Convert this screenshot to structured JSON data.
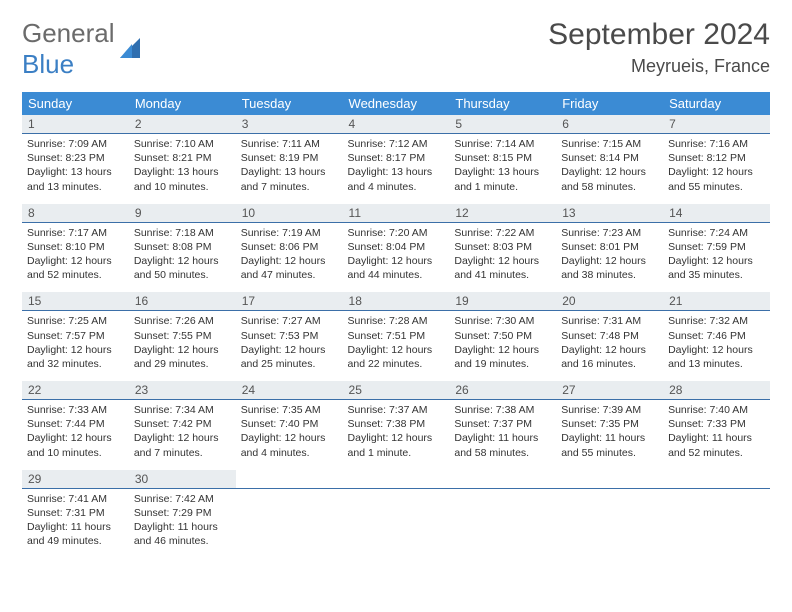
{
  "logo": {
    "line1": "General",
    "line2": "Blue"
  },
  "title": "September 2024",
  "location": "Meyrueis, France",
  "colors": {
    "header_bg": "#3b8bd4",
    "header_text": "#ffffff",
    "daynum_bg": "#e9edf0",
    "row_border": "#3b6fa8",
    "logo_gray": "#6b6b6b",
    "logo_blue": "#3b7fc4",
    "text": "#333333",
    "page_bg": "#ffffff"
  },
  "day_headers": [
    "Sunday",
    "Monday",
    "Tuesday",
    "Wednesday",
    "Thursday",
    "Friday",
    "Saturday"
  ],
  "weeks": [
    [
      {
        "n": "1",
        "sr": "Sunrise: 7:09 AM",
        "ss": "Sunset: 8:23 PM",
        "dl": "Daylight: 13 hours and 13 minutes."
      },
      {
        "n": "2",
        "sr": "Sunrise: 7:10 AM",
        "ss": "Sunset: 8:21 PM",
        "dl": "Daylight: 13 hours and 10 minutes."
      },
      {
        "n": "3",
        "sr": "Sunrise: 7:11 AM",
        "ss": "Sunset: 8:19 PM",
        "dl": "Daylight: 13 hours and 7 minutes."
      },
      {
        "n": "4",
        "sr": "Sunrise: 7:12 AM",
        "ss": "Sunset: 8:17 PM",
        "dl": "Daylight: 13 hours and 4 minutes."
      },
      {
        "n": "5",
        "sr": "Sunrise: 7:14 AM",
        "ss": "Sunset: 8:15 PM",
        "dl": "Daylight: 13 hours and 1 minute."
      },
      {
        "n": "6",
        "sr": "Sunrise: 7:15 AM",
        "ss": "Sunset: 8:14 PM",
        "dl": "Daylight: 12 hours and 58 minutes."
      },
      {
        "n": "7",
        "sr": "Sunrise: 7:16 AM",
        "ss": "Sunset: 8:12 PM",
        "dl": "Daylight: 12 hours and 55 minutes."
      }
    ],
    [
      {
        "n": "8",
        "sr": "Sunrise: 7:17 AM",
        "ss": "Sunset: 8:10 PM",
        "dl": "Daylight: 12 hours and 52 minutes."
      },
      {
        "n": "9",
        "sr": "Sunrise: 7:18 AM",
        "ss": "Sunset: 8:08 PM",
        "dl": "Daylight: 12 hours and 50 minutes."
      },
      {
        "n": "10",
        "sr": "Sunrise: 7:19 AM",
        "ss": "Sunset: 8:06 PM",
        "dl": "Daylight: 12 hours and 47 minutes."
      },
      {
        "n": "11",
        "sr": "Sunrise: 7:20 AM",
        "ss": "Sunset: 8:04 PM",
        "dl": "Daylight: 12 hours and 44 minutes."
      },
      {
        "n": "12",
        "sr": "Sunrise: 7:22 AM",
        "ss": "Sunset: 8:03 PM",
        "dl": "Daylight: 12 hours and 41 minutes."
      },
      {
        "n": "13",
        "sr": "Sunrise: 7:23 AM",
        "ss": "Sunset: 8:01 PM",
        "dl": "Daylight: 12 hours and 38 minutes."
      },
      {
        "n": "14",
        "sr": "Sunrise: 7:24 AM",
        "ss": "Sunset: 7:59 PM",
        "dl": "Daylight: 12 hours and 35 minutes."
      }
    ],
    [
      {
        "n": "15",
        "sr": "Sunrise: 7:25 AM",
        "ss": "Sunset: 7:57 PM",
        "dl": "Daylight: 12 hours and 32 minutes."
      },
      {
        "n": "16",
        "sr": "Sunrise: 7:26 AM",
        "ss": "Sunset: 7:55 PM",
        "dl": "Daylight: 12 hours and 29 minutes."
      },
      {
        "n": "17",
        "sr": "Sunrise: 7:27 AM",
        "ss": "Sunset: 7:53 PM",
        "dl": "Daylight: 12 hours and 25 minutes."
      },
      {
        "n": "18",
        "sr": "Sunrise: 7:28 AM",
        "ss": "Sunset: 7:51 PM",
        "dl": "Daylight: 12 hours and 22 minutes."
      },
      {
        "n": "19",
        "sr": "Sunrise: 7:30 AM",
        "ss": "Sunset: 7:50 PM",
        "dl": "Daylight: 12 hours and 19 minutes."
      },
      {
        "n": "20",
        "sr": "Sunrise: 7:31 AM",
        "ss": "Sunset: 7:48 PM",
        "dl": "Daylight: 12 hours and 16 minutes."
      },
      {
        "n": "21",
        "sr": "Sunrise: 7:32 AM",
        "ss": "Sunset: 7:46 PM",
        "dl": "Daylight: 12 hours and 13 minutes."
      }
    ],
    [
      {
        "n": "22",
        "sr": "Sunrise: 7:33 AM",
        "ss": "Sunset: 7:44 PM",
        "dl": "Daylight: 12 hours and 10 minutes."
      },
      {
        "n": "23",
        "sr": "Sunrise: 7:34 AM",
        "ss": "Sunset: 7:42 PM",
        "dl": "Daylight: 12 hours and 7 minutes."
      },
      {
        "n": "24",
        "sr": "Sunrise: 7:35 AM",
        "ss": "Sunset: 7:40 PM",
        "dl": "Daylight: 12 hours and 4 minutes."
      },
      {
        "n": "25",
        "sr": "Sunrise: 7:37 AM",
        "ss": "Sunset: 7:38 PM",
        "dl": "Daylight: 12 hours and 1 minute."
      },
      {
        "n": "26",
        "sr": "Sunrise: 7:38 AM",
        "ss": "Sunset: 7:37 PM",
        "dl": "Daylight: 11 hours and 58 minutes."
      },
      {
        "n": "27",
        "sr": "Sunrise: 7:39 AM",
        "ss": "Sunset: 7:35 PM",
        "dl": "Daylight: 11 hours and 55 minutes."
      },
      {
        "n": "28",
        "sr": "Sunrise: 7:40 AM",
        "ss": "Sunset: 7:33 PM",
        "dl": "Daylight: 11 hours and 52 minutes."
      }
    ],
    [
      {
        "n": "29",
        "sr": "Sunrise: 7:41 AM",
        "ss": "Sunset: 7:31 PM",
        "dl": "Daylight: 11 hours and 49 minutes."
      },
      {
        "n": "30",
        "sr": "Sunrise: 7:42 AM",
        "ss": "Sunset: 7:29 PM",
        "dl": "Daylight: 11 hours and 46 minutes."
      },
      null,
      null,
      null,
      null,
      null
    ]
  ]
}
